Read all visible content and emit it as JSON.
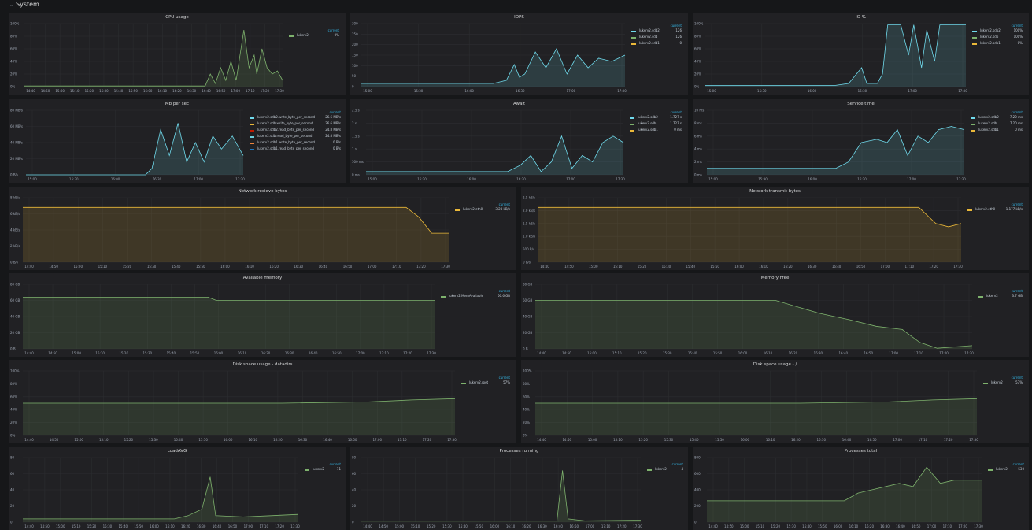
{
  "row": {
    "title": "System",
    "chevron": "⌄"
  },
  "panels": [
    {
      "id": "cpu",
      "title": "CPU usage",
      "yticks": [
        "100%",
        "80%",
        "60%",
        "40%",
        "20%",
        "0%"
      ],
      "xticks": [
        "14:40",
        "14:50",
        "15:00",
        "15:10",
        "15:20",
        "15:30",
        "15:40",
        "15:50",
        "16:00",
        "16:10",
        "16:20",
        "16:30",
        "16:40",
        "16:50",
        "17:00",
        "17:10",
        "17:20",
        "17:30"
      ],
      "legend_header": "current",
      "series": [
        {
          "name": "lukerv2",
          "value": "0%",
          "color": "#7eb26d"
        }
      ]
    },
    {
      "id": "iops",
      "title": "IOPS",
      "yticks": [
        "300",
        "250",
        "200",
        "150",
        "100",
        "50",
        "0"
      ],
      "xticks": [
        "15:00",
        "15:30",
        "16:00",
        "16:30",
        "17:00",
        "17:30"
      ],
      "legend_header": "current",
      "series": [
        {
          "name": "lukerv2.sdb2",
          "value": "126",
          "color": "#70dbed"
        },
        {
          "name": "lukerv2.sdb",
          "value": "126",
          "color": "#7eb26d"
        },
        {
          "name": "lukerv2.sdb1",
          "value": "0",
          "color": "#eab839"
        }
      ]
    },
    {
      "id": "io",
      "title": "IO %",
      "yticks": [
        "100%",
        "80%",
        "60%",
        "40%",
        "20%",
        "0%"
      ],
      "xticks": [
        "15:00",
        "15:30",
        "16:00",
        "16:30",
        "17:00",
        "17:30"
      ],
      "legend_header": "current",
      "series": [
        {
          "name": "lukerv2.sdb2",
          "value": "100%",
          "color": "#70dbed"
        },
        {
          "name": "lukerv2.sdb",
          "value": "100%",
          "color": "#7eb26d"
        },
        {
          "name": "lukerv2.sdb1",
          "value": "0%",
          "color": "#eab839"
        }
      ]
    },
    {
      "id": "mbps",
      "title": "Mb per sec",
      "yticks": [
        "80 MB/s",
        "60 MB/s",
        "40 MB/s",
        "20 MB/s",
        "0 B/s"
      ],
      "xticks": [
        "15:00",
        "15:30",
        "16:00",
        "16:30",
        "17:00",
        "17:30"
      ],
      "legend_header": "current",
      "series": [
        {
          "name": "lukerv2.sdb2.write_byte_per_second",
          "value": "26.6 MB/s",
          "color": "#70dbed"
        },
        {
          "name": "lukerv2.sdb.write_byte_per_second",
          "value": "26.6 MB/s",
          "color": "#eab839"
        },
        {
          "name": "lukerv2.sdb2.read_byte_per_second",
          "value": "24.8 MB/s",
          "color": "#bf1b00"
        },
        {
          "name": "lukerv2.sdb.read_byte_per_second",
          "value": "24.8 MB/s",
          "color": "#6ed0e0"
        },
        {
          "name": "lukerv2.sdb1.write_byte_per_second",
          "value": "0 B/s",
          "color": "#ef843c"
        },
        {
          "name": "lukerv2.sdb1.read_byte_per_second",
          "value": "0 B/s",
          "color": "#1f78c1"
        }
      ]
    },
    {
      "id": "await",
      "title": "Await",
      "yticks": [
        "2.5 s",
        "2 s",
        "1.5 s",
        "1 s",
        "500 ms",
        "0 ms"
      ],
      "xticks": [
        "15:00",
        "15:30",
        "16:00",
        "16:30",
        "17:00",
        "17:30"
      ],
      "legend_header": "current",
      "series": [
        {
          "name": "lukerv2.sdb2",
          "value": "1.727 s",
          "color": "#70dbed"
        },
        {
          "name": "lukerv2.sdb",
          "value": "1.727 s",
          "color": "#7eb26d"
        },
        {
          "name": "lukerv2.sdb1",
          "value": "0 ms",
          "color": "#eab839"
        }
      ]
    },
    {
      "id": "svctime",
      "title": "Service time",
      "yticks": [
        "10 ms",
        "8 ms",
        "6 ms",
        "4 ms",
        "2 ms",
        "0 ms"
      ],
      "xticks": [
        "15:00",
        "15:30",
        "16:00",
        "16:30",
        "17:00",
        "17:30"
      ],
      "legend_header": "current",
      "series": [
        {
          "name": "lukerv2.sdb2",
          "value": "7.20 ms",
          "color": "#70dbed"
        },
        {
          "name": "lukerv2.sdb",
          "value": "7.20 ms",
          "color": "#7eb26d"
        },
        {
          "name": "lukerv2.sdb1",
          "value": "0 ms",
          "color": "#eab839"
        }
      ]
    },
    {
      "id": "netrx",
      "title": "Network recieve bytes",
      "yticks": [
        "8 kB/s",
        "6 kB/s",
        "4 kB/s",
        "2 kB/s",
        "0 B/s"
      ],
      "xticks": [
        "14:40",
        "14:50",
        "15:00",
        "15:10",
        "15:20",
        "15:30",
        "15:40",
        "15:50",
        "16:00",
        "16:10",
        "16:20",
        "16:30",
        "16:40",
        "16:50",
        "17:00",
        "17:10",
        "17:20",
        "17:30"
      ],
      "legend_header": "current",
      "series": [
        {
          "name": "lukerv2.eth0",
          "value": "3.23 kB/s",
          "color": "#eab839"
        }
      ]
    },
    {
      "id": "nettx",
      "title": "Network transmit bytes",
      "yticks": [
        "2.5 kB/s",
        "2.0 kB/s",
        "1.5 kB/s",
        "1.0 kB/s",
        "500 B/s",
        "0 B/s"
      ],
      "xticks": [
        "14:40",
        "14:50",
        "15:00",
        "15:10",
        "15:20",
        "15:30",
        "15:40",
        "15:50",
        "16:00",
        "16:10",
        "16:20",
        "16:30",
        "16:40",
        "16:50",
        "17:00",
        "17:10",
        "17:20",
        "17:30"
      ],
      "legend_header": "current",
      "series": [
        {
          "name": "lukerv2.eth0",
          "value": "1.177 kB/s",
          "color": "#eab839"
        }
      ]
    },
    {
      "id": "availmem",
      "title": "Available memory",
      "yticks": [
        "80 GB",
        "60 GB",
        "40 GB",
        "20 GB",
        "0 B"
      ],
      "xticks": [
        "14:40",
        "14:50",
        "15:00",
        "15:10",
        "15:20",
        "15:30",
        "15:40",
        "15:50",
        "16:00",
        "16:10",
        "16:20",
        "16:30",
        "16:40",
        "16:50",
        "17:00",
        "17:10",
        "17:20",
        "17:30"
      ],
      "legend_header": "current",
      "series": [
        {
          "name": "lukerv2.MemAvailable",
          "value": "60.6 GB",
          "color": "#7eb26d"
        }
      ]
    },
    {
      "id": "memfree",
      "title": "Memory Free",
      "yticks": [
        "80 GB",
        "60 GB",
        "40 GB",
        "20 GB",
        "0 B"
      ],
      "xticks": [
        "14:40",
        "14:50",
        "15:00",
        "15:10",
        "15:20",
        "15:30",
        "15:40",
        "15:50",
        "16:00",
        "16:10",
        "16:20",
        "16:30",
        "16:40",
        "16:50",
        "17:00",
        "17:10",
        "17:20",
        "17:30"
      ],
      "legend_header": "current",
      "series": [
        {
          "name": "lukerv2",
          "value": "3.7 GB",
          "color": "#7eb26d"
        }
      ]
    },
    {
      "id": "diskdata",
      "title": "Disk space usage - datadirs",
      "yticks": [
        "100%",
        "80%",
        "60%",
        "40%",
        "20%",
        "0%"
      ],
      "xticks": [
        "14:40",
        "14:50",
        "15:00",
        "15:10",
        "15:20",
        "15:30",
        "15:40",
        "15:50",
        "16:00",
        "16:10",
        "16:20",
        "16:30",
        "16:40",
        "16:50",
        "17:00",
        "17:10",
        "17:20",
        "17:30"
      ],
      "legend_header": "current",
      "series": [
        {
          "name": "lukerv2.root",
          "value": "57%",
          "color": "#7eb26d"
        }
      ]
    },
    {
      "id": "diskroot",
      "title": "Disk space usage - /",
      "yticks": [
        "100%",
        "80%",
        "60%",
        "40%",
        "20%",
        "0%"
      ],
      "xticks": [
        "14:40",
        "14:50",
        "15:00",
        "15:10",
        "15:20",
        "15:30",
        "15:40",
        "15:50",
        "16:00",
        "16:10",
        "16:20",
        "16:30",
        "16:40",
        "16:50",
        "17:00",
        "17:10",
        "17:20",
        "17:30"
      ],
      "legend_header": "current",
      "series": [
        {
          "name": "lukerv2",
          "value": "57%",
          "color": "#7eb26d"
        }
      ]
    },
    {
      "id": "loadavg",
      "title": "LoadAVG",
      "yticks": [
        "80",
        "60",
        "40",
        "20",
        "0"
      ],
      "xticks": [
        "14:40",
        "14:50",
        "15:00",
        "15:10",
        "15:20",
        "15:30",
        "15:40",
        "15:50",
        "16:00",
        "16:10",
        "16:20",
        "16:30",
        "16:40",
        "16:50",
        "17:00",
        "17:10",
        "17:20",
        "17:30"
      ],
      "legend_header": "current",
      "series": [
        {
          "name": "lukerv2",
          "value": "11",
          "color": "#7eb26d"
        }
      ]
    },
    {
      "id": "procrun",
      "title": "Processes running",
      "yticks": [
        "80",
        "60",
        "40",
        "20",
        "0"
      ],
      "xticks": [
        "14:40",
        "14:50",
        "15:00",
        "15:10",
        "15:20",
        "15:30",
        "15:40",
        "15:50",
        "16:00",
        "16:10",
        "16:20",
        "16:30",
        "16:40",
        "16:50",
        "17:00",
        "17:10",
        "17:20",
        "17:30"
      ],
      "legend_header": "current",
      "series": [
        {
          "name": "lukerv2",
          "value": "4",
          "color": "#7eb26d"
        }
      ]
    },
    {
      "id": "proctotal",
      "title": "Processes total",
      "yticks": [
        "800",
        "600",
        "400",
        "200",
        "0"
      ],
      "xticks": [
        "14:40",
        "14:50",
        "15:00",
        "15:10",
        "15:20",
        "15:30",
        "15:40",
        "15:50",
        "16:00",
        "16:10",
        "16:20",
        "16:30",
        "16:40",
        "16:50",
        "17:00",
        "17:10",
        "17:20",
        "17:30"
      ],
      "legend_header": "current",
      "series": [
        {
          "name": "lukerv2",
          "value": "530",
          "color": "#7eb26d"
        }
      ]
    }
  ]
}
